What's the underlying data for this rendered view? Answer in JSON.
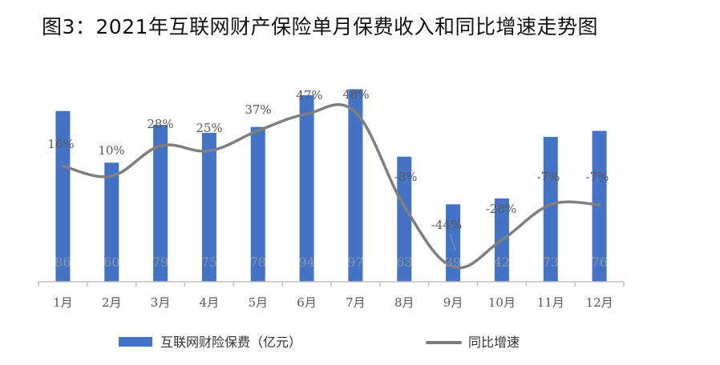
{
  "title": "图3：2021年互联网财产保险单月保费收入和同比增速走势图",
  "chart_data": {
    "type": "bar",
    "categories": [
      "1月",
      "2月",
      "3月",
      "4月",
      "5月",
      "6月",
      "7月",
      "8月",
      "9月",
      "10月",
      "11月",
      "12月"
    ],
    "series": [
      {
        "name": "互联网财险保费（亿元）",
        "type": "bar",
        "values": [
          86,
          60,
          79,
          75,
          78,
          94,
          97,
          63,
          39,
          42,
          73,
          76
        ],
        "labels": [
          "86",
          "60",
          "79",
          "75",
          "78",
          "94",
          "97",
          "63",
          "39",
          "42",
          "73",
          "76"
        ],
        "color": "#4472C4"
      },
      {
        "name": "同比增速",
        "type": "line",
        "values": [
          16,
          10,
          28,
          25,
          37,
          47,
          48,
          -8,
          -44,
          -28,
          -7,
          -7
        ],
        "labels": [
          "16%",
          "10%",
          "28%",
          "25%",
          "37%",
          "47%",
          "48%",
          "-8%",
          "-44%",
          "-28%",
          "-7%",
          "-7%"
        ],
        "color": "#7F7F7F"
      }
    ],
    "axes": {
      "y_left_visible": false,
      "y_right_visible": false
    },
    "grid": false,
    "legend_position": "bottom"
  }
}
